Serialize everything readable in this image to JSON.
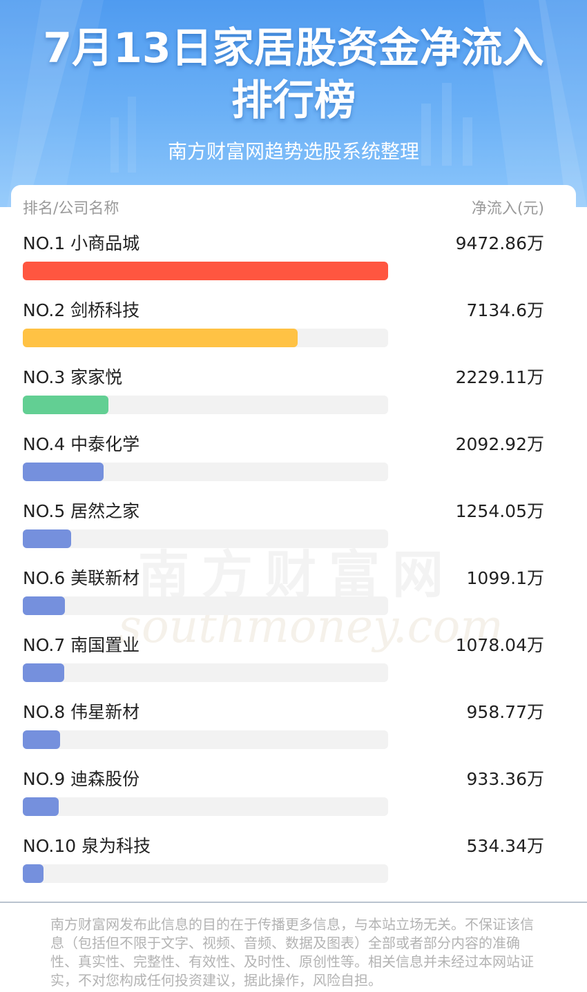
{
  "header": {
    "title_line1": "7月13日家居股资金净流入",
    "title_line2": "排行榜",
    "subtitle": "南方财富网趋势选股系统整理",
    "bg_color": "#5aa5f3"
  },
  "table": {
    "col_left": "排名/公司名称",
    "col_right": "净流入(元)"
  },
  "chart_data": {
    "type": "bar",
    "orientation": "horizontal",
    "unit": "万",
    "categories": [
      "NO.1 小商品城",
      "NO.2 剑桥科技",
      "NO.3 家家悦",
      "NO.4 中泰化学",
      "NO.5 居然之家",
      "NO.6 美联新材",
      "NO.7 南国置业",
      "NO.8 伟星新材",
      "NO.9 迪森股份",
      "NO.10 泉为科技"
    ],
    "values": [
      9472.86,
      7134.6,
      2229.11,
      2092.92,
      1254.05,
      1099.1,
      1078.04,
      958.77,
      933.36,
      534.34
    ],
    "value_labels": [
      "9472.86万",
      "7134.6万",
      "2229.11万",
      "2092.92万",
      "1254.05万",
      "1099.1万",
      "1078.04万",
      "958.77万",
      "933.36万",
      "534.34万"
    ],
    "colors": [
      "#ff5640",
      "#ffc244",
      "#62cf93",
      "#7590dd",
      "#7590dd",
      "#7590dd",
      "#7590dd",
      "#7590dd",
      "#7590dd",
      "#7590dd"
    ],
    "track_color": "#f2f2f2",
    "xlim": [
      0,
      9472.86
    ]
  },
  "watermark": {
    "cn": "南方财富网",
    "en": "southmoney.com"
  },
  "footer": {
    "disclaimer": "南方财富网发布此信息的目的在于传播更多信息，与本站立场无关。不保证该信息（包括但不限于文字、视频、音频、数据及图表）全部或者部分内容的准确性、真实性、完整性、有效性、及时性、原创性等。相关信息并未经过本网站证实，不对您构成任何投资建议，据此操作，风险自担。"
  }
}
